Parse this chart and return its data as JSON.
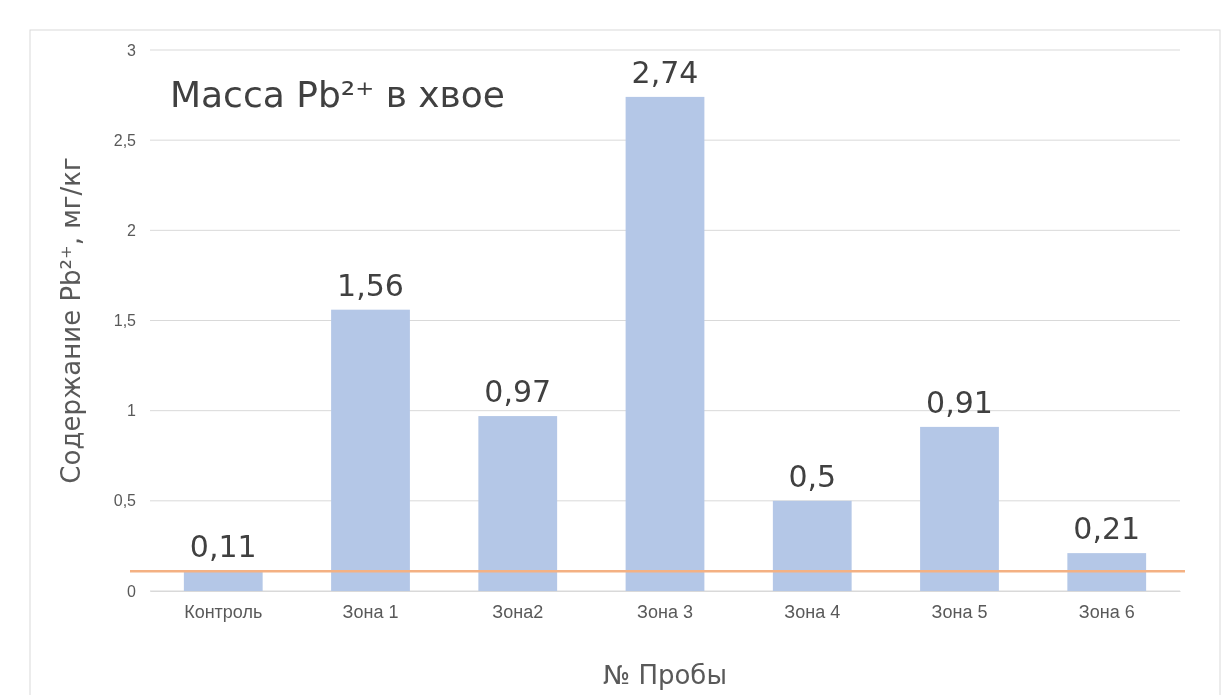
{
  "chart_data": {
    "type": "bar",
    "title": "Масса Pb²⁺ в хвое",
    "xlabel": "№ Пробы",
    "ylabel": "Содержание Pb²⁺, мг/кг",
    "categories": [
      "Контроль",
      "Зона 1",
      "Зона2",
      "Зона 3",
      "Зона 4",
      "Зона 5",
      "Зона 6"
    ],
    "values": [
      0.11,
      1.56,
      0.97,
      2.74,
      0.5,
      0.91,
      0.21
    ],
    "value_labels": [
      "0,11",
      "1,56",
      "0,97",
      "2,74",
      "0,5",
      "0,91",
      "0,21"
    ],
    "color": "#b4c7e7",
    "ylim": [
      0,
      3
    ],
    "yticks": [
      0,
      {
        "value": 0.5,
        "label": "0,5"
      },
      1,
      {
        "value": 1.5,
        "label": "1,5"
      },
      2,
      {
        "value": 2.5,
        "label": "2,5"
      },
      3
    ],
    "grid": "y",
    "ref_lines": [
      {
        "axis": "y",
        "value": 0.11,
        "color": "#f4b183"
      }
    ]
  }
}
